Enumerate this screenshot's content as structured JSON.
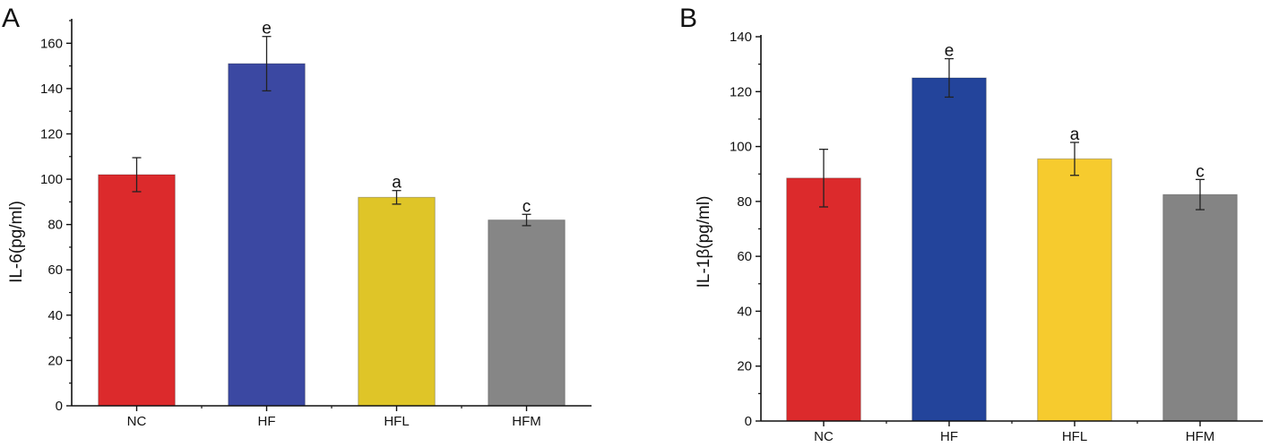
{
  "chart_data": [
    {
      "type": "bar",
      "panel": "A",
      "title": "",
      "xlabel": "",
      "ylabel": "IL-6(pg/ml)",
      "ylim": [
        0,
        170
      ],
      "yticks": [
        0,
        20,
        40,
        60,
        80,
        100,
        120,
        140,
        160
      ],
      "categories": [
        "NC",
        "HF",
        "HFL",
        "HFM"
      ],
      "values": [
        102,
        151,
        92,
        82
      ],
      "errors": [
        7.5,
        12,
        3,
        2.5
      ],
      "labels": [
        "",
        "e",
        "a",
        "c"
      ],
      "colors": [
        "#dc2a2c",
        "#3b48a2",
        "#dfc528",
        "#868686"
      ]
    },
    {
      "type": "bar",
      "panel": "B",
      "title": "",
      "xlabel": "",
      "ylabel": "IL-1β(pg/ml)",
      "ylim": [
        0,
        140
      ],
      "yticks": [
        0,
        20,
        40,
        60,
        80,
        100,
        120,
        140
      ],
      "categories": [
        "NC",
        "HF",
        "HFL",
        "HFM"
      ],
      "values": [
        88.5,
        125,
        95.5,
        82.5
      ],
      "errors": [
        10.5,
        7,
        6,
        5.5
      ],
      "labels": [
        "",
        "e",
        "a",
        "c"
      ],
      "colors": [
        "#dc2a2c",
        "#23449b",
        "#f6cb2e",
        "#848484"
      ]
    }
  ]
}
